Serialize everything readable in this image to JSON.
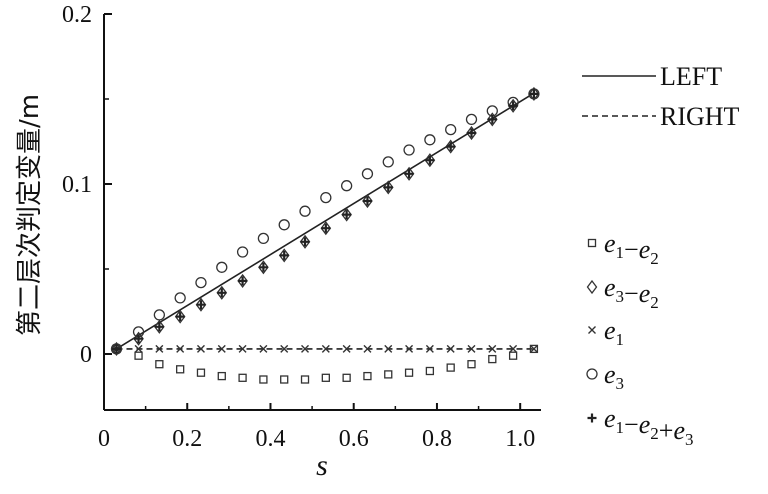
{
  "chart_data": {
    "type": "line",
    "xlabel": "s",
    "ylabel": "第二层次判定变量/m",
    "xlim": [
      0,
      1.05
    ],
    "ylim": [
      -0.035,
      0.2
    ],
    "x_ticks": [
      "0",
      "0.2",
      "0.4",
      "0.6",
      "0.8",
      "1.0"
    ],
    "y_ticks": [
      "0",
      "0.1",
      "0.2"
    ],
    "legend_position": "right",
    "lines": [
      {
        "name": "LEFT",
        "style": "solid",
        "x": [
          0.03,
          1.03
        ],
        "y": [
          0.003,
          0.153
        ]
      },
      {
        "name": "RIGHT",
        "style": "dashed",
        "x": [
          0.03,
          1.03
        ],
        "y": [
          0.003,
          0.003
        ]
      }
    ],
    "series": [
      {
        "name": "e1−e2",
        "label": {
          "base1": "e",
          "sub1": "1",
          "op1": "−",
          "base2": "e",
          "sub2": "2"
        },
        "marker": "square",
        "x": [
          0.03,
          0.083,
          0.133,
          0.183,
          0.233,
          0.283,
          0.333,
          0.383,
          0.433,
          0.483,
          0.533,
          0.583,
          0.633,
          0.683,
          0.733,
          0.783,
          0.833,
          0.883,
          0.933,
          0.983,
          1.033
        ],
        "y": [
          0.003,
          -0.001,
          -0.006,
          -0.009,
          -0.011,
          -0.013,
          -0.014,
          -0.015,
          -0.015,
          -0.015,
          -0.014,
          -0.014,
          -0.013,
          -0.012,
          -0.011,
          -0.01,
          -0.008,
          -0.006,
          -0.003,
          -0.001,
          0.003
        ]
      },
      {
        "name": "e3−e2",
        "label": {
          "base1": "e",
          "sub1": "3",
          "op1": "−",
          "base2": "e",
          "sub2": "2"
        },
        "marker": "diamond",
        "x": [
          0.03,
          0.083,
          0.133,
          0.183,
          0.233,
          0.283,
          0.333,
          0.383,
          0.433,
          0.483,
          0.533,
          0.583,
          0.633,
          0.683,
          0.733,
          0.783,
          0.833,
          0.883,
          0.933,
          0.983,
          1.033
        ],
        "y": [
          0.003,
          0.009,
          0.016,
          0.022,
          0.029,
          0.036,
          0.043,
          0.051,
          0.058,
          0.066,
          0.074,
          0.082,
          0.09,
          0.098,
          0.106,
          0.114,
          0.122,
          0.13,
          0.138,
          0.146,
          0.153
        ]
      },
      {
        "name": "e1",
        "label": {
          "base1": "e",
          "sub1": "1"
        },
        "marker": "x",
        "x": [
          0.03,
          0.083,
          0.133,
          0.183,
          0.233,
          0.283,
          0.333,
          0.383,
          0.433,
          0.483,
          0.533,
          0.583,
          0.633,
          0.683,
          0.733,
          0.783,
          0.833,
          0.883,
          0.933,
          0.983,
          1.033
        ],
        "y": [
          0.003,
          0.003,
          0.003,
          0.003,
          0.003,
          0.003,
          0.003,
          0.003,
          0.003,
          0.003,
          0.003,
          0.003,
          0.003,
          0.003,
          0.003,
          0.003,
          0.003,
          0.003,
          0.003,
          0.003,
          0.003
        ]
      },
      {
        "name": "e3",
        "label": {
          "base1": "e",
          "sub1": "3"
        },
        "marker": "circle",
        "x": [
          0.03,
          0.083,
          0.133,
          0.183,
          0.233,
          0.283,
          0.333,
          0.383,
          0.433,
          0.483,
          0.533,
          0.583,
          0.633,
          0.683,
          0.733,
          0.783,
          0.833,
          0.883,
          0.933,
          0.983,
          1.033
        ],
        "y": [
          0.003,
          0.013,
          0.023,
          0.033,
          0.042,
          0.051,
          0.06,
          0.068,
          0.076,
          0.084,
          0.092,
          0.099,
          0.106,
          0.113,
          0.12,
          0.126,
          0.132,
          0.138,
          0.143,
          0.148,
          0.153
        ]
      },
      {
        "name": "e1−e2+e3",
        "label": {
          "base1": "e",
          "sub1": "1",
          "op1": "−",
          "base2": "e",
          "sub2": "2",
          "op2": "+",
          "base3": "e",
          "sub3": "3"
        },
        "marker": "plus",
        "x": [
          0.03,
          0.083,
          0.133,
          0.183,
          0.233,
          0.283,
          0.333,
          0.383,
          0.433,
          0.483,
          0.533,
          0.583,
          0.633,
          0.683,
          0.733,
          0.783,
          0.833,
          0.883,
          0.933,
          0.983,
          1.033
        ],
        "y": [
          0.003,
          0.009,
          0.016,
          0.022,
          0.029,
          0.036,
          0.043,
          0.051,
          0.058,
          0.066,
          0.074,
          0.082,
          0.09,
          0.098,
          0.106,
          0.114,
          0.122,
          0.13,
          0.138,
          0.146,
          0.153
        ]
      }
    ]
  }
}
